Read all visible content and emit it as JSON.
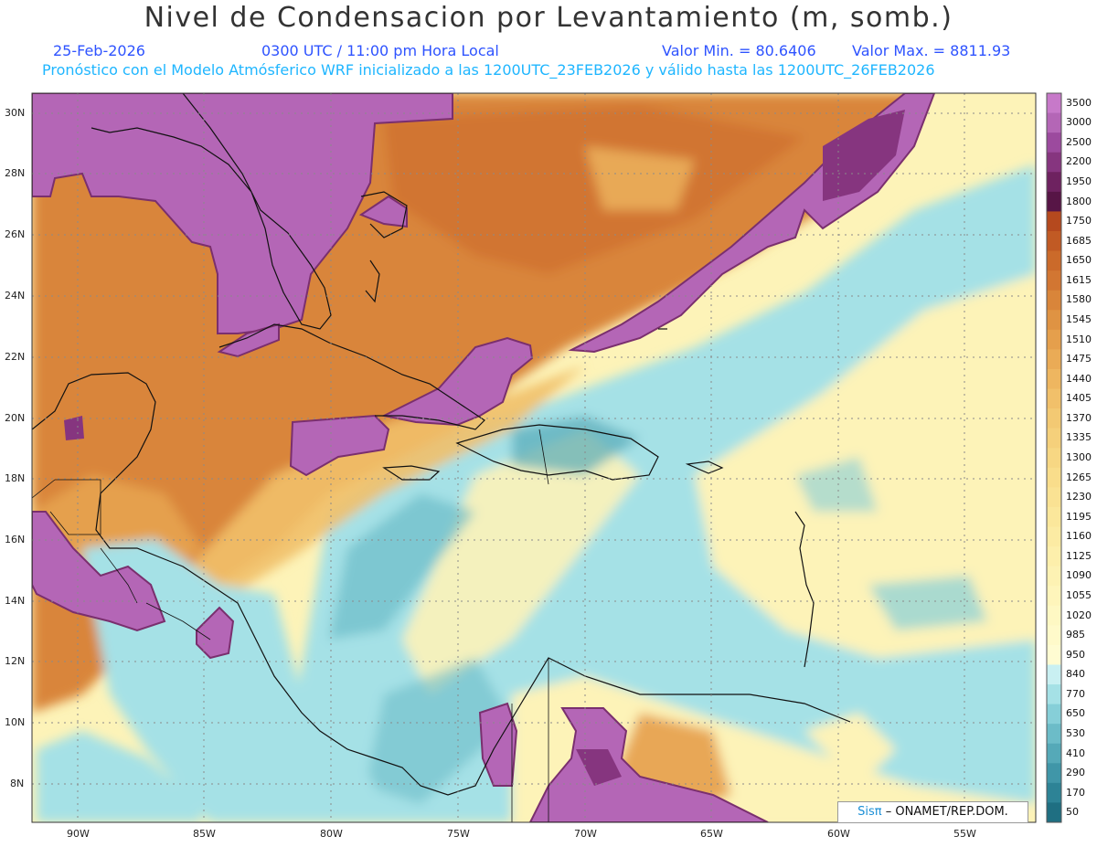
{
  "title": "Nivel de Condensacion por Levantamiento (m, somb.)",
  "date": "25-Feb-2026",
  "time": "0300 UTC / 11:00 pm Hora Local",
  "valmin": "Valor Min. = 80.6406",
  "valmax": "Valor Max. = 8811.93",
  "model_line": "Pronóstico con el Modelo Atmósferico WRF inicializado a las 1200UTC_23FEB2026 y válido hasta las  1200UTC_26FEB2026",
  "lat_labels": [
    "30N",
    "28N",
    "26N",
    "24N",
    "22N",
    "20N",
    "18N",
    "16N",
    "14N",
    "12N",
    "10N",
    "8N"
  ],
  "lon_labels": [
    "90W",
    "85W",
    "80W",
    "75W",
    "70W",
    "65W",
    "60W",
    "55W"
  ],
  "colorbar": {
    "labels": [
      "3500",
      "3000",
      "2500",
      "2200",
      "1950",
      "1800",
      "1750",
      "1685",
      "1650",
      "1615",
      "1580",
      "1545",
      "1510",
      "1475",
      "1440",
      "1405",
      "1370",
      "1335",
      "1300",
      "1265",
      "1230",
      "1195",
      "1160",
      "1125",
      "1090",
      "1055",
      "1020",
      "985",
      "950",
      "840",
      "770",
      "650",
      "530",
      "410",
      "290",
      "170",
      "50"
    ],
    "colors": [
      "#c779c9",
      "#b466b6",
      "#9c4a9e",
      "#86357f",
      "#6e2260",
      "#571546",
      "#b5491e",
      "#c15a24",
      "#cb6a2a",
      "#d27632",
      "#d9853a",
      "#df9343",
      "#e59f4c",
      "#eaab56",
      "#eeb660",
      "#f1c06a",
      "#f3c973",
      "#f5d07b",
      "#f7d783",
      "#f9dd8b",
      "#fae293",
      "#fbe79b",
      "#fcebA3",
      "#fdefab",
      "#fdf2b3",
      "#fef5bb",
      "#fef8c3",
      "#fffaca",
      "#fffcd2",
      "#c9f0f2",
      "#a5e1e6",
      "#86cfd8",
      "#6cbcc8",
      "#55a9b8",
      "#4096a8",
      "#2d8396",
      "#1f6f82"
    ]
  },
  "credit": {
    "brand": "Sisπ",
    "rest": "– ONAMET/REP.DOM."
  },
  "colors": {
    "purple": "#b466b6",
    "orange": "#d9853a",
    "yellow": "#fdf3b8",
    "cyan": "#a5e1e6",
    "teal": "#55a9b8"
  }
}
